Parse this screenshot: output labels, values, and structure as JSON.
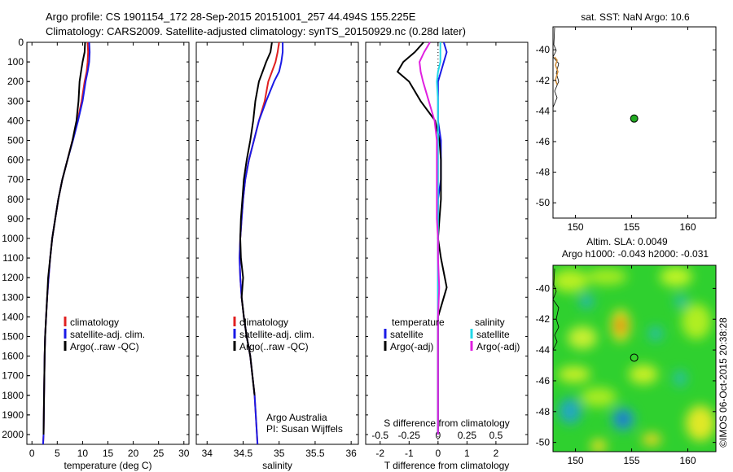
{
  "header": {
    "line1": "Argo profile: CS 1901154_172 28-Sep-2015 20151001_257 44.494S 155.225E",
    "line2": "Climatology: CARS2009. Satellite-adjusted climatology: synTS_20150929.nc (0.28d later)"
  },
  "side_label": "©IMOS 06-Oct-2015 20:38:28",
  "colors": {
    "climatology": "#e02020",
    "satellite": "#1a1ae6",
    "argo": "#000000",
    "sal_satellite": "#22d8e8",
    "sal_argo": "#e020e0",
    "float_marker": "#22aa22"
  },
  "chart_data": [
    {
      "id": "temperature",
      "type": "line",
      "xlabel": "temperature (deg C)",
      "xlim": [
        -1,
        31
      ],
      "xticks": [
        "0",
        "5",
        "10",
        "15",
        "20",
        "25",
        "30"
      ],
      "xtick_values": [
        0,
        5,
        10,
        15,
        20,
        25,
        30
      ],
      "ylim": [
        2050,
        0
      ],
      "yticks": [
        "0",
        "100",
        "200",
        "300",
        "400",
        "500",
        "600",
        "700",
        "800",
        "900",
        "1000",
        "1100",
        "1200",
        "1300",
        "1400",
        "1500",
        "1600",
        "1700",
        "1800",
        "1900",
        "2000"
      ],
      "ytick_values": [
        0,
        100,
        200,
        300,
        400,
        500,
        600,
        700,
        800,
        900,
        1000,
        1100,
        1200,
        1300,
        1400,
        1500,
        1600,
        1700,
        1800,
        1900,
        2000
      ],
      "legend": [
        "climatology",
        "satellite-adj. clim.",
        "Argo(..raw -QC)"
      ],
      "series": [
        {
          "name": "climatology",
          "color_key": "climatology",
          "x": [
            11.0,
            11.1,
            11.0,
            10.8,
            10.4,
            9.8,
            9.0,
            8.0,
            7.0,
            6.0,
            5.2,
            4.6,
            4.0,
            3.6,
            3.3,
            3.0,
            2.8,
            2.6,
            2.5,
            2.4,
            2.3,
            2.2
          ],
          "y": [
            0,
            50,
            100,
            150,
            200,
            300,
            400,
            500,
            600,
            700,
            800,
            900,
            1000,
            1100,
            1200,
            1300,
            1400,
            1500,
            1600,
            1800,
            2000,
            2050
          ]
        },
        {
          "name": "satellite-adj. clim.",
          "color_key": "satellite",
          "x": [
            11.3,
            11.4,
            11.3,
            11.0,
            10.6,
            10.0,
            9.1,
            8.1,
            7.0,
            6.0,
            5.2,
            4.6,
            4.0,
            3.6,
            3.3,
            3.0,
            2.8,
            2.6,
            2.5,
            2.4,
            2.3,
            2.2
          ],
          "y": [
            0,
            50,
            100,
            150,
            200,
            300,
            400,
            500,
            600,
            700,
            800,
            900,
            1000,
            1100,
            1200,
            1300,
            1400,
            1500,
            1600,
            1800,
            2000,
            2050
          ]
        },
        {
          "name": "Argo(..raw -QC)",
          "color_key": "argo",
          "x": [
            10.5,
            10.4,
            10.0,
            9.7,
            9.4,
            9.2,
            8.8,
            8.0,
            7.0,
            6.0,
            5.2,
            4.6,
            4.0,
            3.6,
            3.2,
            3.0,
            2.8,
            2.6,
            2.5,
            2.4,
            2.3
          ],
          "y": [
            0,
            50,
            100,
            150,
            200,
            300,
            400,
            500,
            600,
            700,
            800,
            900,
            1000,
            1100,
            1200,
            1300,
            1400,
            1500,
            1600,
            1800,
            2000
          ]
        }
      ]
    },
    {
      "id": "salinity",
      "type": "line",
      "xlabel": "salinity",
      "xlim": [
        33.85,
        36.1
      ],
      "xticks": [
        "34",
        "34.5",
        "35",
        "35.5",
        "36"
      ],
      "xtick_values": [
        34,
        34.5,
        35,
        35.5,
        36
      ],
      "ylim": [
        2050,
        0
      ],
      "legend": [
        "climatology",
        "satellite-adj. clim.",
        "Argo(..raw -QC)"
      ],
      "annotation": [
        "Argo Australia",
        "PI: Susan Wijffels"
      ],
      "series": [
        {
          "name": "climatology",
          "color_key": "climatology",
          "x": [
            35.0,
            34.98,
            34.95,
            34.9,
            34.85,
            34.8,
            34.72,
            34.65,
            34.58,
            34.53,
            34.5,
            34.48,
            34.46,
            34.45,
            34.46,
            34.48,
            34.51,
            34.55,
            34.6,
            34.66,
            34.7
          ],
          "y": [
            0,
            50,
            100,
            150,
            200,
            300,
            400,
            500,
            600,
            700,
            800,
            900,
            1000,
            1100,
            1200,
            1300,
            1400,
            1500,
            1600,
            1800,
            2050
          ]
        },
        {
          "name": "satellite-adj. clim.",
          "color_key": "satellite",
          "x": [
            35.05,
            35.05,
            35.03,
            35.0,
            34.93,
            34.82,
            34.72,
            34.65,
            34.58,
            34.53,
            34.5,
            34.48,
            34.46,
            34.45,
            34.46,
            34.48,
            34.51,
            34.55,
            34.6,
            34.66,
            34.7
          ],
          "y": [
            0,
            50,
            100,
            150,
            200,
            300,
            400,
            500,
            600,
            700,
            800,
            900,
            1000,
            1100,
            1200,
            1300,
            1400,
            1500,
            1600,
            1800,
            2050
          ]
        },
        {
          "name": "Argo(..raw -QC)",
          "color_key": "argo",
          "x": [
            34.9,
            34.88,
            34.82,
            34.77,
            34.72,
            34.67,
            34.64,
            34.6,
            34.55,
            34.51,
            34.49,
            34.47,
            34.46,
            34.47,
            34.5,
            34.48,
            34.51,
            34.55,
            34.6,
            34.66
          ],
          "y": [
            0,
            50,
            100,
            150,
            200,
            300,
            400,
            500,
            600,
            700,
            800,
            900,
            1000,
            1100,
            1200,
            1300,
            1400,
            1500,
            1600,
            1800
          ]
        }
      ]
    },
    {
      "id": "difference",
      "type": "line",
      "xlabel": "T difference from climatology",
      "x2label": "S difference from climatology",
      "xlim": [
        -2.5,
        3.1
      ],
      "xticks": [
        "-2",
        "-1",
        "0",
        "1",
        "2"
      ],
      "xtick_values": [
        -2,
        -1,
        0,
        1,
        2
      ],
      "x2ticks": [
        "-0.5",
        "-0.25",
        "0",
        "0.25",
        "0.5"
      ],
      "x2tick_values": [
        -0.5,
        -0.25,
        0,
        0.25,
        0.5
      ],
      "ylim": [
        2050,
        0
      ],
      "legend_headers": [
        "temperature",
        "salinity"
      ],
      "legend": [
        "satellite",
        "Argo(-adj)",
        "satellite",
        "Argo(-adj)"
      ],
      "series": [
        {
          "name": "satellite",
          "group": "temperature",
          "color_key": "satellite",
          "x": [
            0.2,
            0.3,
            0.2,
            0.1,
            0.0,
            0.0,
            0.0,
            0.1,
            0.1,
            0.1,
            0.0,
            0.0,
            0.0,
            0.0,
            0.0,
            0.0,
            0.0,
            0.0,
            0.0,
            0.0
          ],
          "y": [
            0,
            50,
            100,
            150,
            200,
            300,
            400,
            500,
            600,
            700,
            800,
            900,
            1000,
            1100,
            1200,
            1300,
            1400,
            1500,
            1600,
            2000
          ]
        },
        {
          "name": "Argo(-adj)",
          "group": "temperature",
          "color_key": "argo",
          "x": [
            -0.5,
            -0.8,
            -1.2,
            -1.4,
            -1.0,
            -0.6,
            -0.1,
            0.05,
            0.1,
            0.1,
            0.1,
            0.05,
            0.0,
            0.1,
            0.3,
            0.1,
            0.0,
            0.0,
            0.0,
            0.0
          ],
          "y": [
            0,
            50,
            100,
            150,
            200,
            300,
            400,
            500,
            600,
            700,
            800,
            900,
            1000,
            1100,
            1250,
            1350,
            1400,
            1500,
            1600,
            2000
          ]
        },
        {
          "name": "satellite",
          "group": "salinity",
          "color_key": "sal_satellite",
          "x": [
            0.02,
            0.02,
            0.02,
            0.0,
            -0.01,
            0.0,
            0.0,
            0.0,
            0.0,
            0.0,
            0.0,
            0.0,
            0.0,
            0.0,
            0.0,
            0.0,
            0.0,
            0.0
          ],
          "y": [
            0,
            50,
            100,
            150,
            200,
            300,
            400,
            500,
            600,
            700,
            800,
            900,
            1000,
            1100,
            1200,
            1300,
            1600,
            2000
          ]
        },
        {
          "name": "Argo(-adj)",
          "group": "salinity",
          "color_key": "sal_argo",
          "x": [
            -0.07,
            -0.12,
            -0.16,
            -0.15,
            -0.13,
            -0.08,
            -0.03,
            -0.01,
            -0.01,
            -0.01,
            -0.01,
            -0.01,
            0.0,
            0.0,
            0.01,
            0.0,
            0.0,
            0.0
          ],
          "y": [
            0,
            50,
            100,
            150,
            200,
            300,
            400,
            500,
            600,
            700,
            800,
            900,
            1000,
            1100,
            1250,
            1400,
            1600,
            2000
          ]
        }
      ]
    }
  ],
  "maps": [
    {
      "id": "sst-map",
      "title": "sat. SST: NaN Argo: 10.6",
      "xlim": [
        148,
        162.5
      ],
      "ylim": [
        -51,
        -38.5
      ],
      "xticks": [
        "150",
        "155",
        "160"
      ],
      "xtick_values": [
        150,
        155,
        160
      ],
      "yticks": [
        "-40",
        "-42",
        "-44",
        "-46",
        "-48",
        "-50"
      ],
      "ytick_values": [
        -40,
        -42,
        -44,
        -46,
        -48,
        -50
      ],
      "float_position": {
        "lon": 155.225,
        "lat": -44.494
      }
    },
    {
      "id": "sla-map",
      "title_line1": "Altim. SLA: 0.0049",
      "title_line2": "Argo h1000: -0.043 h2000: -0.031",
      "xlim": [
        148,
        162.5
      ],
      "ylim": [
        -50.6,
        -38.5
      ],
      "xticks": [
        "150",
        "155",
        "160"
      ],
      "xtick_values": [
        150,
        155,
        160
      ],
      "yticks": [
        "-40",
        "-42",
        "-44",
        "-46",
        "-48",
        "-50"
      ],
      "ytick_values": [
        -40,
        -42,
        -44,
        -46,
        -48,
        -50
      ],
      "float_position": {
        "lon": 155.225,
        "lat": -44.494
      }
    }
  ]
}
